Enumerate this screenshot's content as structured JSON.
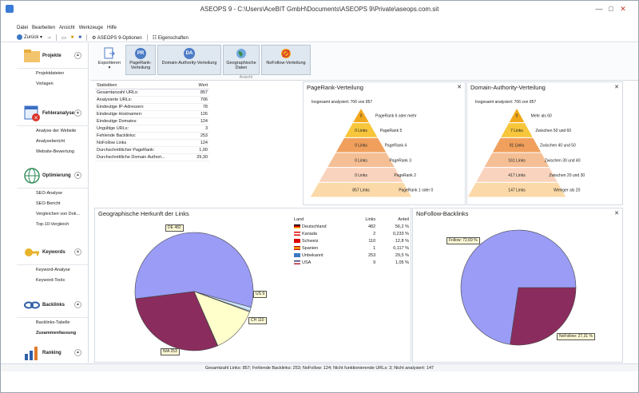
{
  "window": {
    "title": "ASEOPS 9 - C:\\Users\\AceBIT GmbH\\Documents\\ASEOPS 9\\Private\\aseops.com.sit",
    "minimize": "—",
    "maximize": "□",
    "close": "✕"
  },
  "menu": [
    "Datei",
    "Bearbeiten",
    "Ansicht",
    "Werkzeuge",
    "Hilfe"
  ],
  "quickbar": {
    "back": "Zurück",
    "options": "ASEOPS 9-Optionen",
    "properties": "Eigenschaften"
  },
  "sidebar": [
    {
      "label": "Projekte",
      "icon": "folder-icon",
      "items": [
        "Projektdateien",
        "Vorlagen"
      ]
    },
    {
      "label": "Fehleranalyse",
      "icon": "error-analysis-icon",
      "items": [
        "Analyse der Website",
        "Analysebericht",
        "Website-Bewertung"
      ]
    },
    {
      "label": "Optimierung",
      "icon": "globe-icon",
      "items": [
        "SEO-Analyse",
        "SEO-Bericht",
        "Vergleichen von Dok...",
        "Top-10-Vergleich"
      ]
    },
    {
      "label": "Keywords",
      "icon": "key-icon",
      "items": [
        "Keyword-Analyse",
        "Keyword-Tools"
      ]
    },
    {
      "label": "Backlinks",
      "icon": "link-icon",
      "items": [
        "Backlinks-Tabelle",
        "Zusammenfassung"
      ]
    },
    {
      "label": "Ranking",
      "icon": "ranking-icon",
      "items": []
    }
  ],
  "ribbon": {
    "export": "Exportieren",
    "pagerank": "PageRank-Verteilung",
    "pagerank_line1": "PageRank-",
    "pagerank_line2": "Verteilung",
    "domain_authority": "Domain-Authority-Verteilung",
    "geo_line1": "Geographische",
    "geo_line2": "Daten",
    "nofollow": "NoFollow-Verteilung",
    "group_label": "Ansicht",
    "pr_badge": "PR",
    "da_badge": "DA"
  },
  "stats": {
    "header_label": "Statistiken",
    "header_value": "Wert",
    "rows": [
      [
        "Gesamtanzahl URLs:",
        "857"
      ],
      [
        "Analysierte URLs:",
        "706"
      ],
      [
        "Eindeutige IP-Adressen:",
        "78"
      ],
      [
        "Eindeutige Hostnamen:",
        "126"
      ],
      [
        "Eindeutige Domains:",
        "124"
      ],
      [
        "Ungültige URLs:",
        "3"
      ],
      [
        "Fehlende Backlinks:",
        "253"
      ],
      [
        "NoFollow Links",
        "124"
      ],
      [
        "Durchschnittlicher PageRank:",
        "1,00"
      ],
      [
        "Durchschnittliche Domain Authori...",
        "29,30"
      ]
    ]
  },
  "pagerank_panel": {
    "title": "PageRank-Verteilung",
    "summary": "Insgesamt analysiert: 706 von 857",
    "close": "✕",
    "levels": [
      {
        "value": "0",
        "label": "PageRank 6 oder mehr",
        "color": "#f2a81d"
      },
      {
        "value": "0 Links",
        "label": "PageRank 5",
        "color": "#f7c63b"
      },
      {
        "value": "0 Links",
        "label": "PageRank 4",
        "color": "#f0a05c"
      },
      {
        "value": "0 Links",
        "label": "PageRank 3",
        "color": "#f5bf95"
      },
      {
        "value": "0 Links",
        "label": "PageRank 2",
        "color": "#f9d3bd"
      },
      {
        "value": "857 Links",
        "label": "PageRank 1 oder 0",
        "color": "#fbd9a8"
      }
    ]
  },
  "da_panel": {
    "title": "Domain-Authority-Verteilung",
    "summary": "Insgesamt analysiert: 706 von 857",
    "close": "✕",
    "levels": [
      {
        "value": "0",
        "label": "Mehr als 60",
        "color": "#f2a81d"
      },
      {
        "value": "7 Links",
        "label": "Zwischen 50 und 60",
        "color": "#f7c63b"
      },
      {
        "value": "91 Links",
        "label": "Zwischen 40 und 50",
        "color": "#f0a05c"
      },
      {
        "value": "161 Links",
        "label": "Zwischen 30 und 40",
        "color": "#f5bf95"
      },
      {
        "value": "417 Links",
        "label": "Zwischen 20 und 30",
        "color": "#f9d3bd"
      },
      {
        "value": "147 Links",
        "label": "Weniger als 20",
        "color": "#fbd9a8"
      }
    ]
  },
  "geo_panel": {
    "title": "Geographische Herkunft der Links",
    "col_country": "Land",
    "col_links": "Links",
    "col_share": "Anteil",
    "rows": [
      {
        "country": "Deutschland",
        "links": "482",
        "share": "56,2 %",
        "flag": "de"
      },
      {
        "country": "Kanada",
        "links": "2",
        "share": "0,233 %",
        "flag": "ca"
      },
      {
        "country": "Schweiz",
        "links": "110",
        "share": "12,8 %",
        "flag": "ch"
      },
      {
        "country": "Spanien",
        "links": "1",
        "share": "0,117 %",
        "flag": "es"
      },
      {
        "country": "Unbekannt",
        "links": "253",
        "share": "29,5 %",
        "flag": "na"
      },
      {
        "country": "USA",
        "links": "9",
        "share": "1,05 %",
        "flag": "us"
      }
    ],
    "callouts": {
      "de": "DE 482",
      "us": "US 9",
      "ch": "CH 110",
      "na": "N/A 253"
    }
  },
  "nofollow_panel": {
    "title": "NoFollow-Backlinks",
    "close": "✕",
    "callouts": {
      "follow": "Follow: 72,69 %",
      "nofollow": "NoFollow: 27,31 %"
    }
  },
  "chart_data": [
    {
      "type": "pie",
      "title": "Geographische Herkunft der Links",
      "categories": [
        "Deutschland",
        "Kanada",
        "Schweiz",
        "Spanien",
        "Unbekannt",
        "USA"
      ],
      "values": [
        482,
        2,
        110,
        1,
        253,
        9
      ],
      "colors": [
        "#9a9cf5",
        "#cfe8ff",
        "#ffffcc",
        "#e9f5d5",
        "#8b2c5e",
        "#c9e4ff"
      ]
    },
    {
      "type": "pie",
      "title": "NoFollow-Backlinks",
      "categories": [
        "Follow",
        "NoFollow"
      ],
      "values": [
        72.69,
        27.31
      ],
      "colors": [
        "#9a9cf5",
        "#8b2c5e"
      ]
    }
  ],
  "status": "Gesamtzahl Links: 857; Fehlende Backlinks: 253; NoFollow: 124; Nicht funktionierende URLs: 3; Nicht analysiert: 147"
}
